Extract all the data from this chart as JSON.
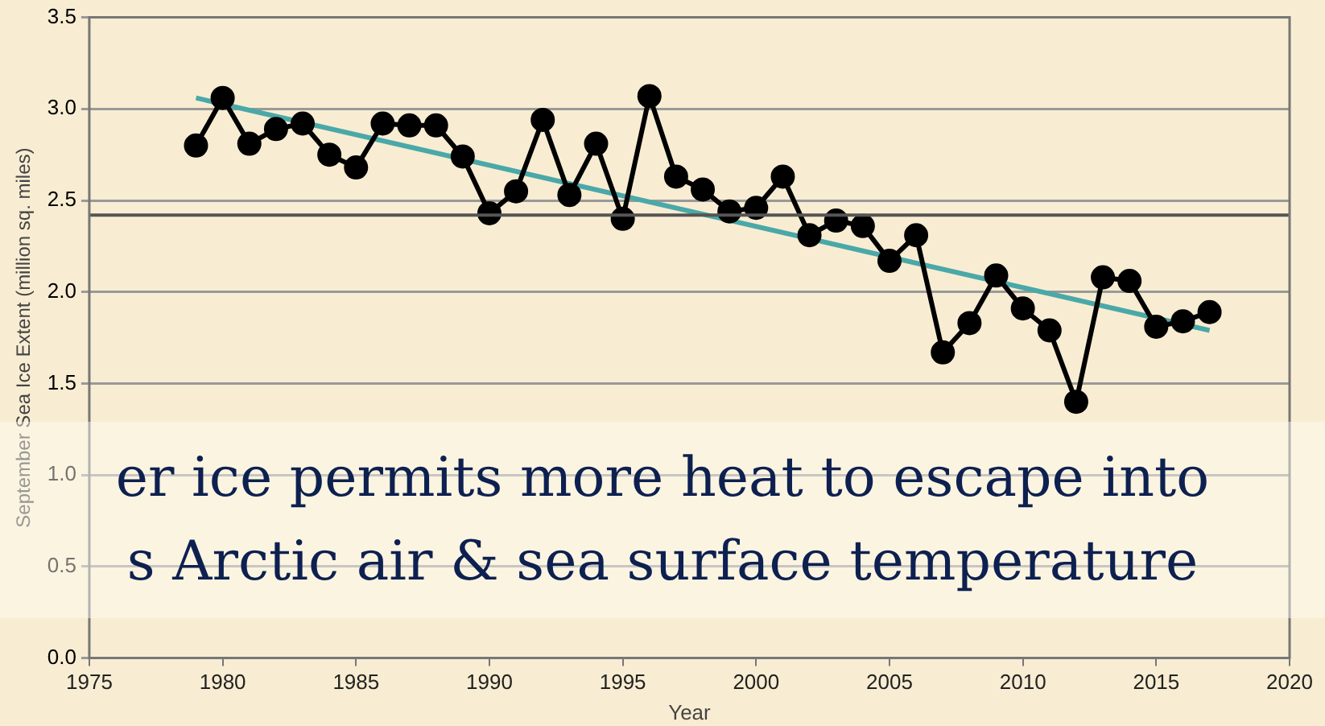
{
  "chart_data": {
    "type": "line",
    "xlabel": "Year",
    "ylabel": "September Sea Ice Extent (million sq. miles)",
    "x": [
      1979,
      1980,
      1981,
      1982,
      1983,
      1984,
      1985,
      1986,
      1987,
      1988,
      1989,
      1990,
      1991,
      1992,
      1993,
      1994,
      1995,
      1996,
      1997,
      1998,
      1999,
      2000,
      2001,
      2002,
      2003,
      2004,
      2005,
      2006,
      2007,
      2008,
      2009,
      2010,
      2011,
      2012,
      2013,
      2014,
      2015,
      2016,
      2017
    ],
    "series": [
      {
        "color": "#000000",
        "marker": "circle",
        "values": [
          2.8,
          3.06,
          2.81,
          2.89,
          2.92,
          2.75,
          2.68,
          2.92,
          2.91,
          2.91,
          2.74,
          2.43,
          2.55,
          2.94,
          2.53,
          2.81,
          2.4,
          3.07,
          2.63,
          2.56,
          2.44,
          2.46,
          2.63,
          2.31,
          2.39,
          2.36,
          2.17,
          2.31,
          1.67,
          1.83,
          2.09,
          1.91,
          1.79,
          1.4,
          2.08,
          2.06,
          1.81,
          1.84,
          1.89
        ]
      },
      {
        "color": "#4aa8a8",
        "marker": "none",
        "x": [
          1979,
          2017
        ],
        "values": [
          3.06,
          1.79
        ]
      }
    ],
    "ref_lines": [
      {
        "axis": "y",
        "value": 2.42,
        "color": "#555555"
      }
    ],
    "xlim": [
      1975,
      2020
    ],
    "xticks": [
      1975,
      1980,
      1985,
      1990,
      1995,
      2000,
      2005,
      2010,
      2015,
      2020
    ],
    "ylim": [
      0,
      3.5
    ],
    "yticks": [
      {
        "value": 0,
        "label": "0.0"
      },
      0.5,
      {
        "value": 1,
        "label": "1.0"
      },
      1.5,
      {
        "value": 2,
        "label": "2.0"
      },
      2.5,
      {
        "value": 3,
        "label": "3.0"
      },
      3.5
    ],
    "grid": "y",
    "legend": false,
    "annotations": [
      "er ice permits more heat to escape into",
      "s Arctic air & sea surface temperature"
    ]
  }
}
